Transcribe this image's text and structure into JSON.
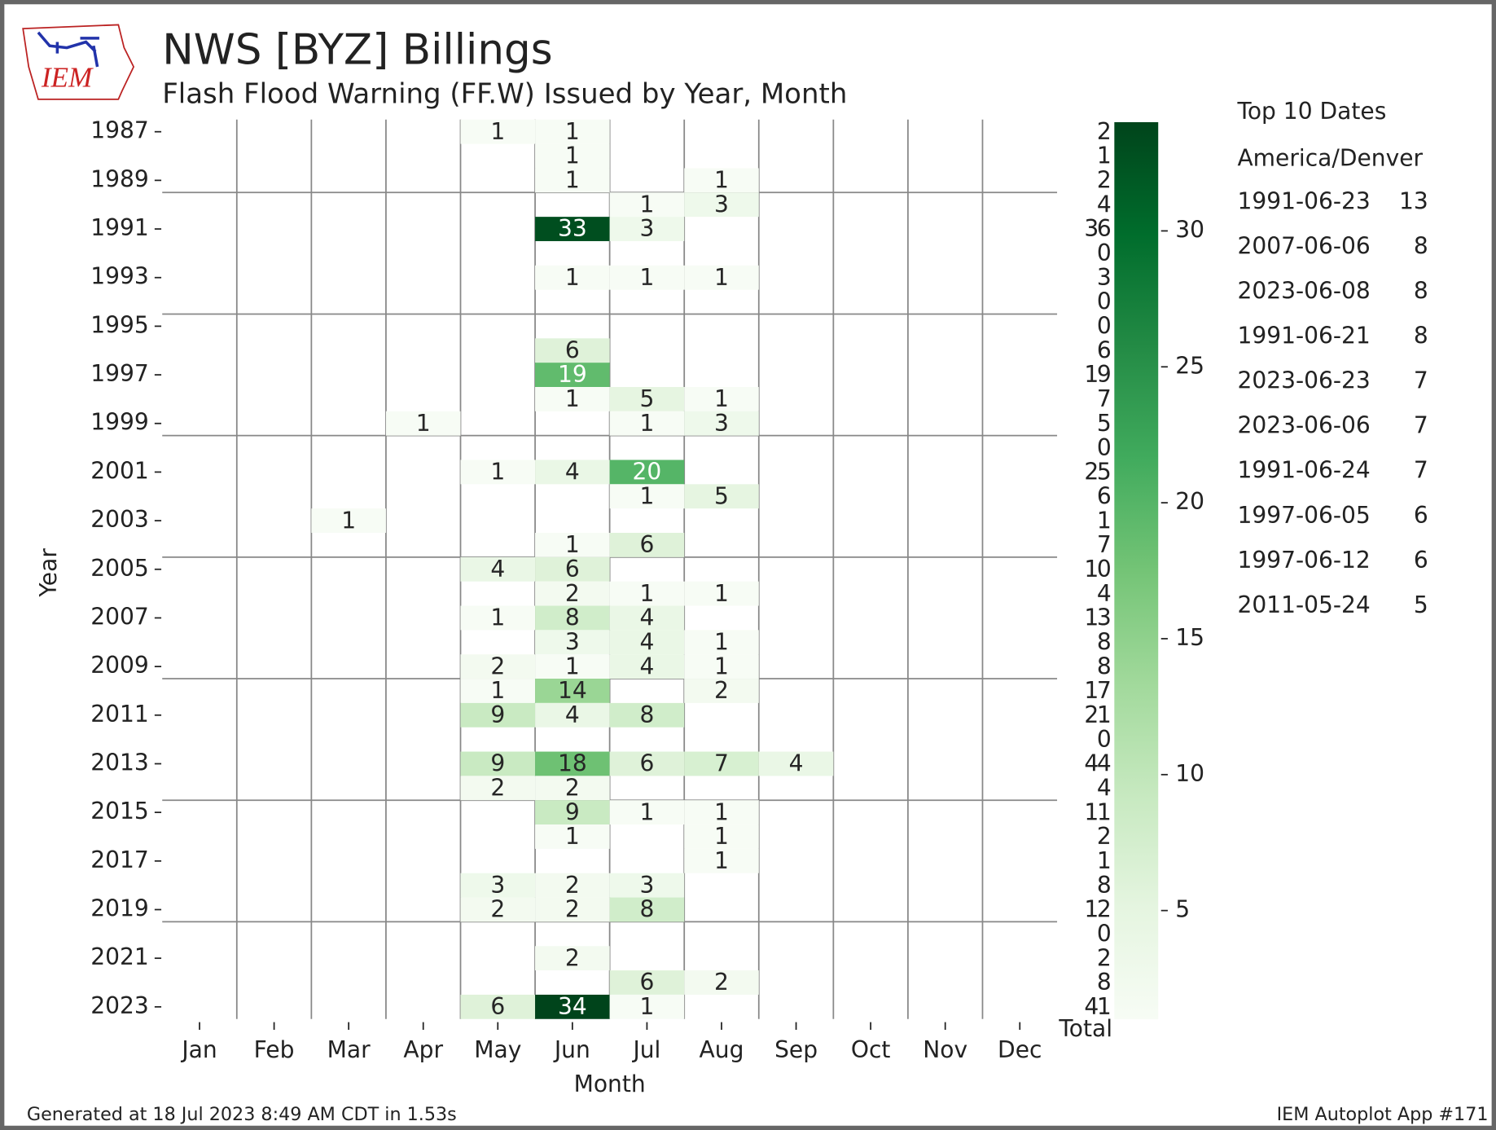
{
  "chart_data": {
    "type": "heatmap",
    "title": "NWS [BYZ] Billings",
    "subtitle": "Flash Flood Warning (FF.W) Issued by Year, Month",
    "logo_text": "IEM",
    "x_label": "Month",
    "y_label": "Year",
    "categories": [
      "Jan",
      "Feb",
      "Mar",
      "Apr",
      "May",
      "Jun",
      "Jul",
      "Aug",
      "Sep",
      "Oct",
      "Nov",
      "Dec"
    ],
    "rows": [
      "1987",
      null,
      "1989",
      null,
      "1991",
      null,
      "1993",
      null,
      "1995",
      null,
      "1997",
      null,
      "1999",
      null,
      "2001",
      null,
      "2003",
      null,
      "2005",
      null,
      "2007",
      null,
      "2009",
      null,
      "2011",
      null,
      "2013",
      null,
      "2015",
      null,
      "2017",
      null,
      "2019",
      null,
      "2021",
      null,
      "2023"
    ],
    "values": [
      [
        null,
        null,
        null,
        null,
        1,
        1,
        null,
        null,
        null,
        null,
        null,
        null
      ],
      [
        null,
        null,
        null,
        null,
        null,
        1,
        null,
        null,
        null,
        null,
        null,
        null
      ],
      [
        null,
        null,
        null,
        null,
        null,
        1,
        null,
        1,
        null,
        null,
        null,
        null
      ],
      [
        null,
        null,
        null,
        null,
        null,
        null,
        1,
        3,
        null,
        null,
        null,
        null
      ],
      [
        null,
        null,
        null,
        null,
        null,
        33,
        3,
        null,
        null,
        null,
        null,
        null
      ],
      [
        null,
        null,
        null,
        null,
        null,
        null,
        null,
        null,
        null,
        null,
        null,
        null
      ],
      [
        null,
        null,
        null,
        null,
        null,
        1,
        1,
        1,
        null,
        null,
        null,
        null
      ],
      [
        null,
        null,
        null,
        null,
        null,
        null,
        null,
        null,
        null,
        null,
        null,
        null
      ],
      [
        null,
        null,
        null,
        null,
        null,
        null,
        null,
        null,
        null,
        null,
        null,
        null
      ],
      [
        null,
        null,
        null,
        null,
        null,
        6,
        null,
        null,
        null,
        null,
        null,
        null
      ],
      [
        null,
        null,
        null,
        null,
        null,
        19,
        null,
        null,
        null,
        null,
        null,
        null
      ],
      [
        null,
        null,
        null,
        null,
        null,
        1,
        5,
        1,
        null,
        null,
        null,
        null
      ],
      [
        null,
        null,
        null,
        1,
        null,
        null,
        1,
        3,
        null,
        null,
        null,
        null
      ],
      [
        null,
        null,
        null,
        null,
        null,
        null,
        null,
        null,
        null,
        null,
        null,
        null
      ],
      [
        null,
        null,
        null,
        null,
        1,
        4,
        20,
        null,
        null,
        null,
        null,
        null
      ],
      [
        null,
        null,
        null,
        null,
        null,
        null,
        1,
        5,
        null,
        null,
        null,
        null
      ],
      [
        null,
        null,
        1,
        null,
        null,
        null,
        null,
        null,
        null,
        null,
        null,
        null
      ],
      [
        null,
        null,
        null,
        null,
        null,
        1,
        6,
        null,
        null,
        null,
        null,
        null
      ],
      [
        null,
        null,
        null,
        null,
        4,
        6,
        null,
        null,
        null,
        null,
        null,
        null
      ],
      [
        null,
        null,
        null,
        null,
        null,
        2,
        1,
        1,
        null,
        null,
        null,
        null
      ],
      [
        null,
        null,
        null,
        null,
        1,
        8,
        4,
        null,
        null,
        null,
        null,
        null
      ],
      [
        null,
        null,
        null,
        null,
        null,
        3,
        4,
        1,
        null,
        null,
        null,
        null
      ],
      [
        null,
        null,
        null,
        null,
        2,
        1,
        4,
        1,
        null,
        null,
        null,
        null
      ],
      [
        null,
        null,
        null,
        null,
        1,
        14,
        null,
        2,
        null,
        null,
        null,
        null
      ],
      [
        null,
        null,
        null,
        null,
        9,
        4,
        8,
        null,
        null,
        null,
        null,
        null
      ],
      [
        null,
        null,
        null,
        null,
        null,
        null,
        null,
        null,
        null,
        null,
        null,
        null
      ],
      [
        null,
        null,
        null,
        null,
        9,
        18,
        6,
        7,
        4,
        null,
        null,
        null
      ],
      [
        null,
        null,
        null,
        null,
        2,
        2,
        null,
        null,
        null,
        null,
        null,
        null
      ],
      [
        null,
        null,
        null,
        null,
        null,
        9,
        1,
        1,
        null,
        null,
        null,
        null
      ],
      [
        null,
        null,
        null,
        null,
        null,
        1,
        null,
        1,
        null,
        null,
        null,
        null
      ],
      [
        null,
        null,
        null,
        null,
        null,
        null,
        null,
        1,
        null,
        null,
        null,
        null
      ],
      [
        null,
        null,
        null,
        null,
        3,
        2,
        3,
        null,
        null,
        null,
        null,
        null
      ],
      [
        null,
        null,
        null,
        null,
        2,
        2,
        8,
        null,
        null,
        null,
        null,
        null
      ],
      [
        null,
        null,
        null,
        null,
        null,
        null,
        null,
        null,
        null,
        null,
        null,
        null
      ],
      [
        null,
        null,
        null,
        null,
        null,
        2,
        null,
        null,
        null,
        null,
        null,
        null
      ],
      [
        null,
        null,
        null,
        null,
        null,
        null,
        6,
        2,
        null,
        null,
        null,
        null
      ],
      [
        null,
        null,
        null,
        null,
        6,
        34,
        1,
        null,
        null,
        null,
        null,
        null
      ]
    ],
    "totals_label": "Total",
    "totals": [
      2,
      1,
      2,
      4,
      36,
      0,
      3,
      0,
      0,
      6,
      19,
      7,
      5,
      0,
      25,
      6,
      1,
      7,
      10,
      4,
      13,
      8,
      8,
      17,
      21,
      0,
      44,
      4,
      11,
      2,
      1,
      8,
      12,
      0,
      2,
      8,
      41
    ],
    "colormap": [
      "#f7fcf5",
      "#e5f5e0",
      "#c7e9c0",
      "#a1d99b",
      "#74c476",
      "#41ab5d",
      "#238b45",
      "#006d2c",
      "#00441b"
    ],
    "clim": [
      1,
      34
    ],
    "cticks": [
      5,
      10,
      15,
      20,
      25,
      30
    ],
    "top_title": "Top 10 Dates",
    "top_timezone": "America/Denver",
    "top_dates": [
      {
        "date": "1991-06-23",
        "count": 13
      },
      {
        "date": "2007-06-06",
        "count": 8
      },
      {
        "date": "2023-06-08",
        "count": 8
      },
      {
        "date": "1991-06-21",
        "count": 8
      },
      {
        "date": "2023-06-23",
        "count": 7
      },
      {
        "date": "2023-06-06",
        "count": 7
      },
      {
        "date": "1991-06-24",
        "count": 7
      },
      {
        "date": "1997-06-05",
        "count": 6
      },
      {
        "date": "1997-06-12",
        "count": 6
      },
      {
        "date": "2011-05-24",
        "count": 5
      }
    ],
    "footer_left": "Generated at 18 Jul 2023 8:49 AM CDT in 1.53s",
    "footer_right": "IEM Autoplot App #171"
  }
}
